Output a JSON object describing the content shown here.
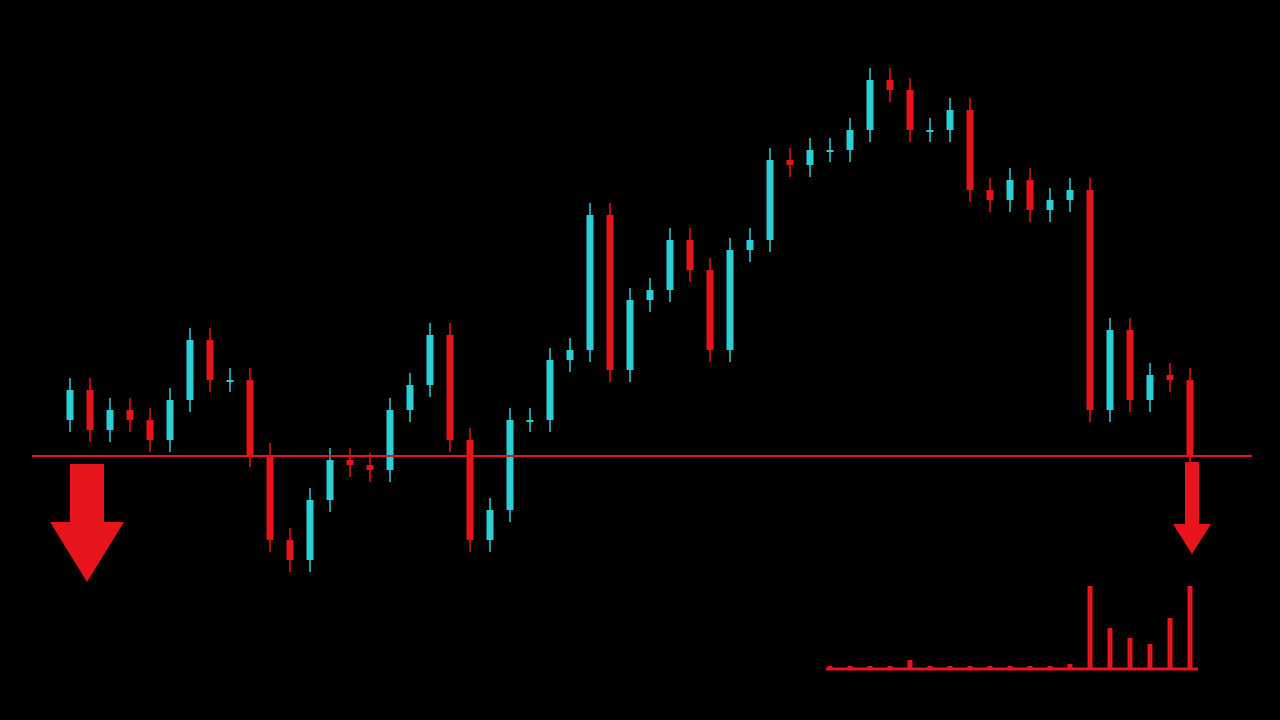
{
  "chart_data": {
    "type": "candlestick",
    "ylim": [
      0,
      720
    ],
    "up_color": "#2ccfd6",
    "down_color": "#e8141c",
    "support": 264,
    "support_color": "#e8141c",
    "open": [
      300,
      330,
      290,
      310,
      300,
      280,
      320,
      380,
      340,
      340,
      265,
      180,
      160,
      220,
      260,
      255,
      250,
      310,
      335,
      385,
      280,
      180,
      210,
      300,
      300,
      360,
      370,
      505,
      350,
      420,
      430,
      480,
      450,
      370,
      470,
      480,
      560,
      555,
      570,
      570,
      590,
      640,
      630,
      590,
      590,
      610,
      530,
      520,
      540,
      510,
      520,
      530,
      310,
      390,
      320,
      345,
      340
    ],
    "high": [
      342,
      342,
      322,
      322,
      312,
      332,
      392,
      392,
      352,
      352,
      277,
      192,
      232,
      272,
      272,
      267,
      322,
      347,
      397,
      397,
      292,
      222,
      312,
      312,
      372,
      382,
      517,
      517,
      432,
      442,
      492,
      492,
      462,
      482,
      492,
      572,
      572,
      582,
      582,
      602,
      652,
      652,
      642,
      602,
      622,
      622,
      542,
      552,
      552,
      532,
      542,
      542,
      402,
      402,
      357,
      357,
      352
    ],
    "low": [
      288,
      278,
      278,
      288,
      268,
      268,
      308,
      328,
      328,
      253,
      168,
      148,
      148,
      208,
      243,
      238,
      238,
      298,
      323,
      268,
      168,
      168,
      198,
      288,
      288,
      348,
      358,
      338,
      338,
      408,
      418,
      438,
      358,
      358,
      458,
      468,
      543,
      543,
      558,
      558,
      578,
      618,
      578,
      578,
      578,
      518,
      508,
      508,
      498,
      498,
      508,
      298,
      298,
      308,
      308,
      328,
      253
    ],
    "close": [
      330,
      290,
      310,
      300,
      280,
      320,
      380,
      340,
      340,
      265,
      180,
      160,
      220,
      260,
      255,
      250,
      310,
      335,
      385,
      280,
      180,
      210,
      300,
      300,
      360,
      370,
      505,
      350,
      420,
      430,
      480,
      450,
      370,
      470,
      480,
      560,
      555,
      570,
      570,
      590,
      640,
      630,
      590,
      590,
      610,
      530,
      520,
      540,
      510,
      520,
      530,
      310,
      390,
      320,
      345,
      340,
      265
    ],
    "volume": [
      0,
      0,
      0,
      0,
      0,
      0,
      0,
      0,
      0,
      0,
      0,
      0,
      0,
      0,
      0,
      0,
      0,
      0,
      0,
      0,
      0,
      0,
      0,
      0,
      0,
      0,
      0,
      0,
      0,
      0,
      0,
      0,
      0,
      0,
      0,
      0,
      0,
      0,
      2,
      2,
      2,
      2,
      8,
      2,
      2,
      2,
      2,
      2,
      2,
      2,
      4,
      82,
      40,
      30,
      24,
      50,
      82
    ]
  }
}
